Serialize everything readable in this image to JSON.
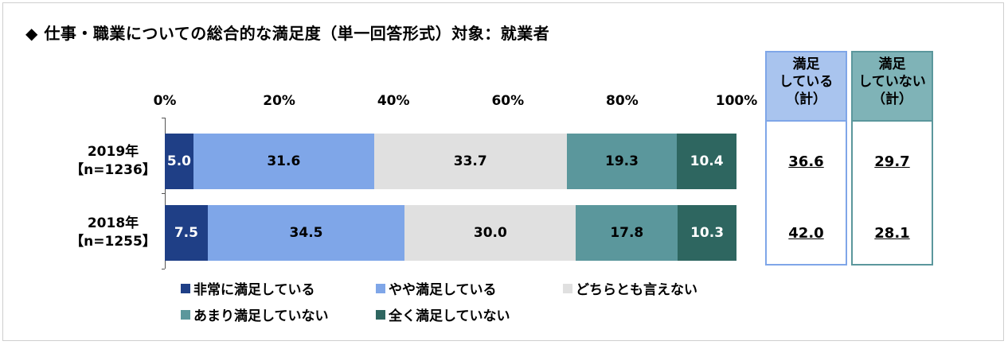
{
  "title": "◆ 仕事・職業についての総合的な満足度（単一回答形式）対象：就業者",
  "chart_data": {
    "type": "bar",
    "orientation": "horizontal-stacked-100",
    "axis_ticks": [
      "0%",
      "20%",
      "40%",
      "60%",
      "80%",
      "100%"
    ],
    "xlim": [
      0,
      100
    ],
    "categories": [
      {
        "year": "2019年",
        "n": "【n=1236】"
      },
      {
        "year": "2018年",
        "n": "【n=1255】"
      }
    ],
    "series": [
      {
        "name": "非常に満足している",
        "color": "#1f3f86",
        "text_color": "#ffffff",
        "values": [
          5.0,
          7.5
        ],
        "labels": [
          "5.0",
          "7.5"
        ]
      },
      {
        "name": "やや満足している",
        "color": "#7fa6e8",
        "text_color": "#000000",
        "values": [
          31.6,
          34.5
        ],
        "labels": [
          "31.6",
          "34.5"
        ]
      },
      {
        "name": "どちらとも言えない",
        "color": "#e0e0e0",
        "text_color": "#000000",
        "values": [
          33.7,
          30.0
        ],
        "labels": [
          "33.7",
          "30.0"
        ]
      },
      {
        "name": "あまり満足していない",
        "color": "#5b979c",
        "text_color": "#000000",
        "values": [
          19.3,
          17.8
        ],
        "labels": [
          "19.3",
          "17.8"
        ]
      },
      {
        "name": "全く満足していない",
        "color": "#2e6660",
        "text_color": "#ffffff",
        "values": [
          10.4,
          10.3
        ],
        "labels": [
          "10.4",
          "10.3"
        ]
      }
    ],
    "summary": [
      {
        "header_lines": [
          "満足",
          "している",
          "（計）"
        ],
        "values": [
          "36.6",
          "42.0"
        ],
        "header_bg": "#a9c4ee",
        "border": "#7fa6e8"
      },
      {
        "header_lines": [
          "満足",
          "していない",
          "（計）"
        ],
        "values": [
          "29.7",
          "28.1"
        ],
        "header_bg": "#7fb3b7",
        "border": "#5b979c"
      }
    ]
  }
}
